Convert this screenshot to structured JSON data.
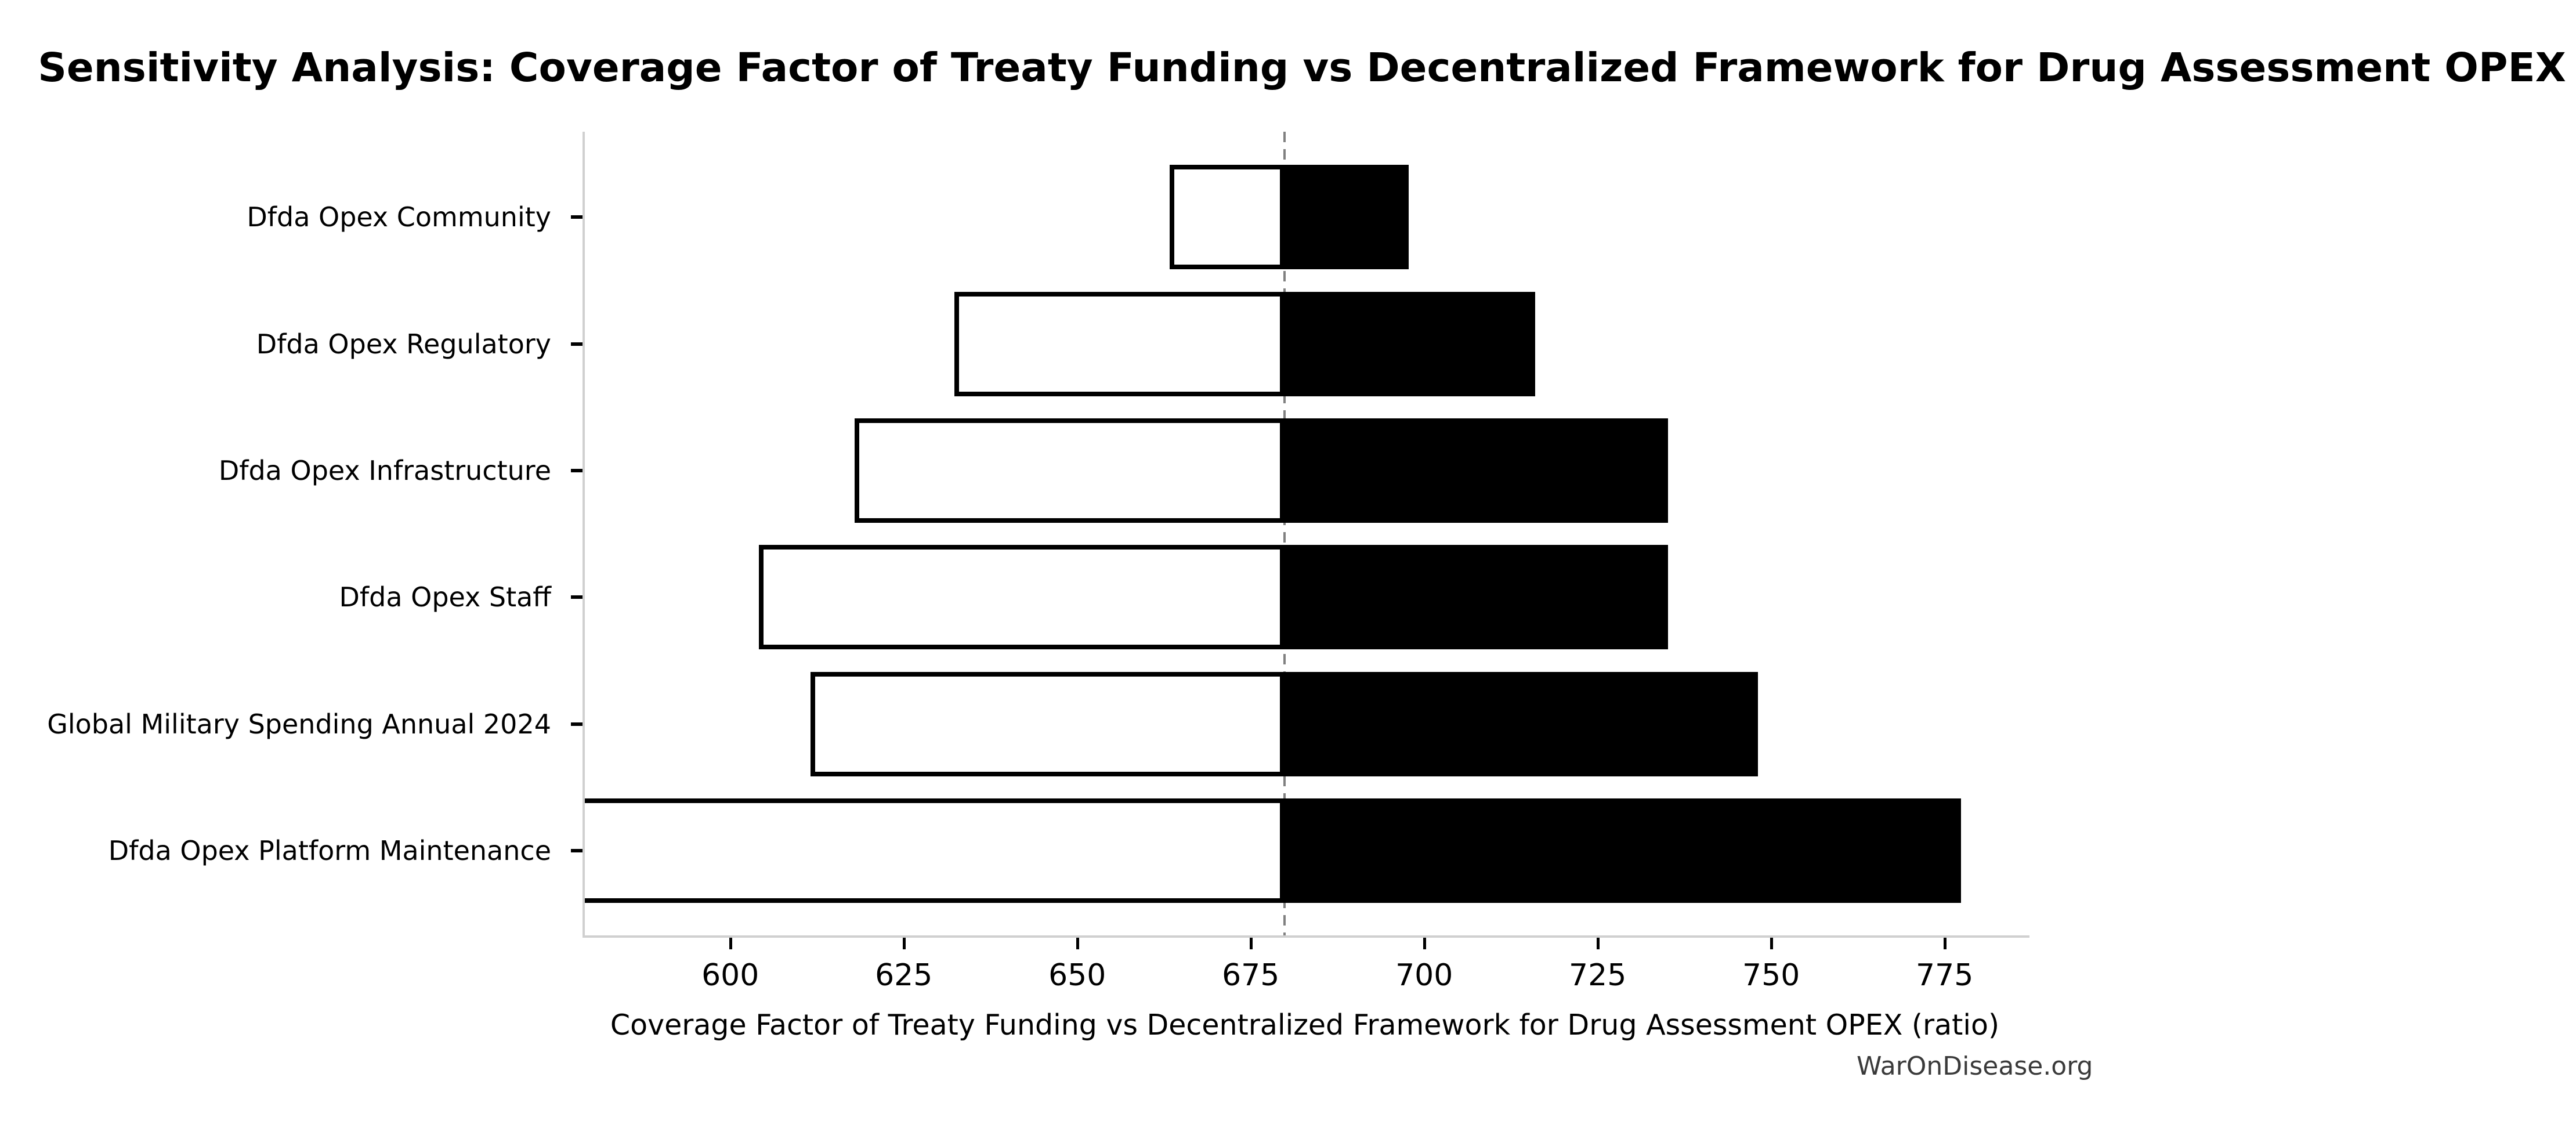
{
  "chart_data": {
    "type": "bar",
    "variant": "tornado-sensitivity",
    "orientation": "horizontal",
    "title": "Sensitivity Analysis: Coverage Factor of Treaty Funding vs Decentralized Framework for Drug Assessment OPEX",
    "xlabel": "Coverage Factor of Treaty Funding vs Decentralized Framework for Drug Assessment OPEX (ratio)",
    "ylabel": "",
    "watermark": "WarOnDisease.org",
    "categories": [
      "Dfda Opex Community",
      "Dfda Opex Regulatory",
      "Dfda Opex Infrastructure",
      "Dfda Opex Staff",
      "Global Military Spending Annual 2024",
      "Dfda Opex Platform Maintenance"
    ],
    "series": [
      {
        "name": "low",
        "fill": "#ffffff",
        "edge": "#000000",
        "values": [
          663.0,
          632.0,
          617.6,
          603.8,
          611.2,
          578.7
        ]
      },
      {
        "name": "high",
        "fill": "#000000",
        "edge": "#000000",
        "values": [
          697.4,
          715.7,
          734.8,
          734.8,
          747.8,
          777.0
        ]
      }
    ],
    "low_clipped_at_axis": [
      false,
      false,
      false,
      false,
      false,
      true
    ],
    "baseline": 679.5,
    "xlim": [
      578.7,
      786.9
    ],
    "xticks": [
      600,
      625,
      650,
      675,
      700,
      725,
      750,
      775
    ],
    "grid": false,
    "legend": false,
    "colors": {
      "background": "#ffffff",
      "text": "#000000",
      "spine": "#d0d0d0",
      "baseline_line": "#808080",
      "watermark_text": "#3a3a3a"
    }
  }
}
